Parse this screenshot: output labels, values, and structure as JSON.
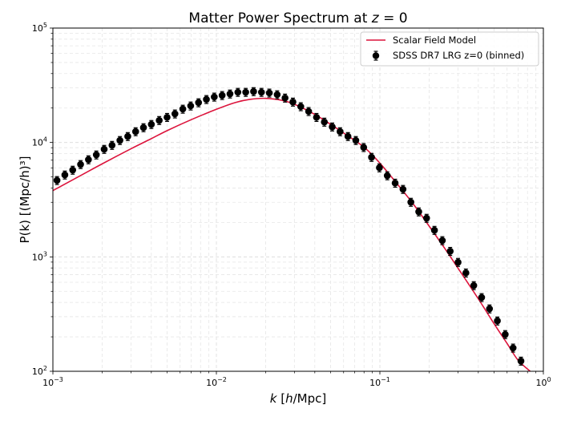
{
  "chart_data": {
    "type": "line",
    "title": "Matter Power Spectrum at ",
    "title_var": "z",
    "title_suffix": " = 0",
    "xlabel_var": "k",
    "xlabel_rest": " [",
    "xlabel_h": "h",
    "xlabel_unit": "/Mpc]",
    "ylabel_var": "P",
    "ylabel_k": "k",
    "ylabel_text": "P(k) [(Mpc/h)³]",
    "xscale": "log",
    "yscale": "log",
    "xlim": [
      0.001,
      1
    ],
    "ylim": [
      100,
      100000
    ],
    "grid": true,
    "legend_position": "top-right",
    "x_ticks": [
      {
        "base": "10",
        "exp": "−3",
        "value": 0.001
      },
      {
        "base": "10",
        "exp": "−2",
        "value": 0.01
      },
      {
        "base": "10",
        "exp": "−1",
        "value": 0.1
      },
      {
        "base": "10",
        "exp": "0",
        "value": 1
      }
    ],
    "y_ticks": [
      {
        "base": "10",
        "exp": "2",
        "value": 100
      },
      {
        "base": "10",
        "exp": "3",
        "value": 1000
      },
      {
        "base": "10",
        "exp": "4",
        "value": 10000
      },
      {
        "base": "10",
        "exp": "5",
        "value": 100000
      }
    ],
    "series": [
      {
        "name": "Scalar Field Model",
        "kind": "line",
        "color": "#dc143c",
        "k": [
          0.001,
          0.0015,
          0.002,
          0.003,
          0.004,
          0.005,
          0.007,
          0.01,
          0.013,
          0.016,
          0.02,
          0.025,
          0.03,
          0.04,
          0.05,
          0.06,
          0.08,
          0.1,
          0.13,
          0.16,
          0.2,
          0.25,
          0.3,
          0.4,
          0.5,
          0.6,
          0.7,
          0.83
        ],
        "P": [
          3800,
          5200,
          6500,
          8800,
          10800,
          12700,
          15800,
          19500,
          22300,
          23800,
          24300,
          23400,
          21600,
          17600,
          14400,
          12100,
          9100,
          6600,
          4200,
          2900,
          1860,
          1180,
          800,
          430,
          260,
          175,
          125,
          100
        ]
      },
      {
        "name": "SDSS DR7 LRG z=0 (binned)",
        "kind": "errorbar",
        "color": "#000000",
        "log_k_start": -2.975,
        "log_k_step": 0.0481,
        "P": [
          4660,
          5210,
          5740,
          6430,
          7080,
          7800,
          8730,
          9460,
          10430,
          11300,
          12450,
          13500,
          14400,
          15600,
          16600,
          17800,
          19600,
          20900,
          22300,
          23800,
          25000,
          25800,
          26600,
          27500,
          27500,
          27900,
          27500,
          27100,
          26200,
          24500,
          22600,
          20600,
          18700,
          16600,
          15100,
          13700,
          12450,
          11300,
          10430,
          9060,
          7430,
          6020,
          5130,
          4420,
          3900,
          3010,
          2480,
          2180,
          1710,
          1390,
          1120,
          897,
          725,
          562,
          442,
          352,
          276,
          210,
          160,
          123
        ],
        "rel_error": 0.08
      }
    ]
  }
}
